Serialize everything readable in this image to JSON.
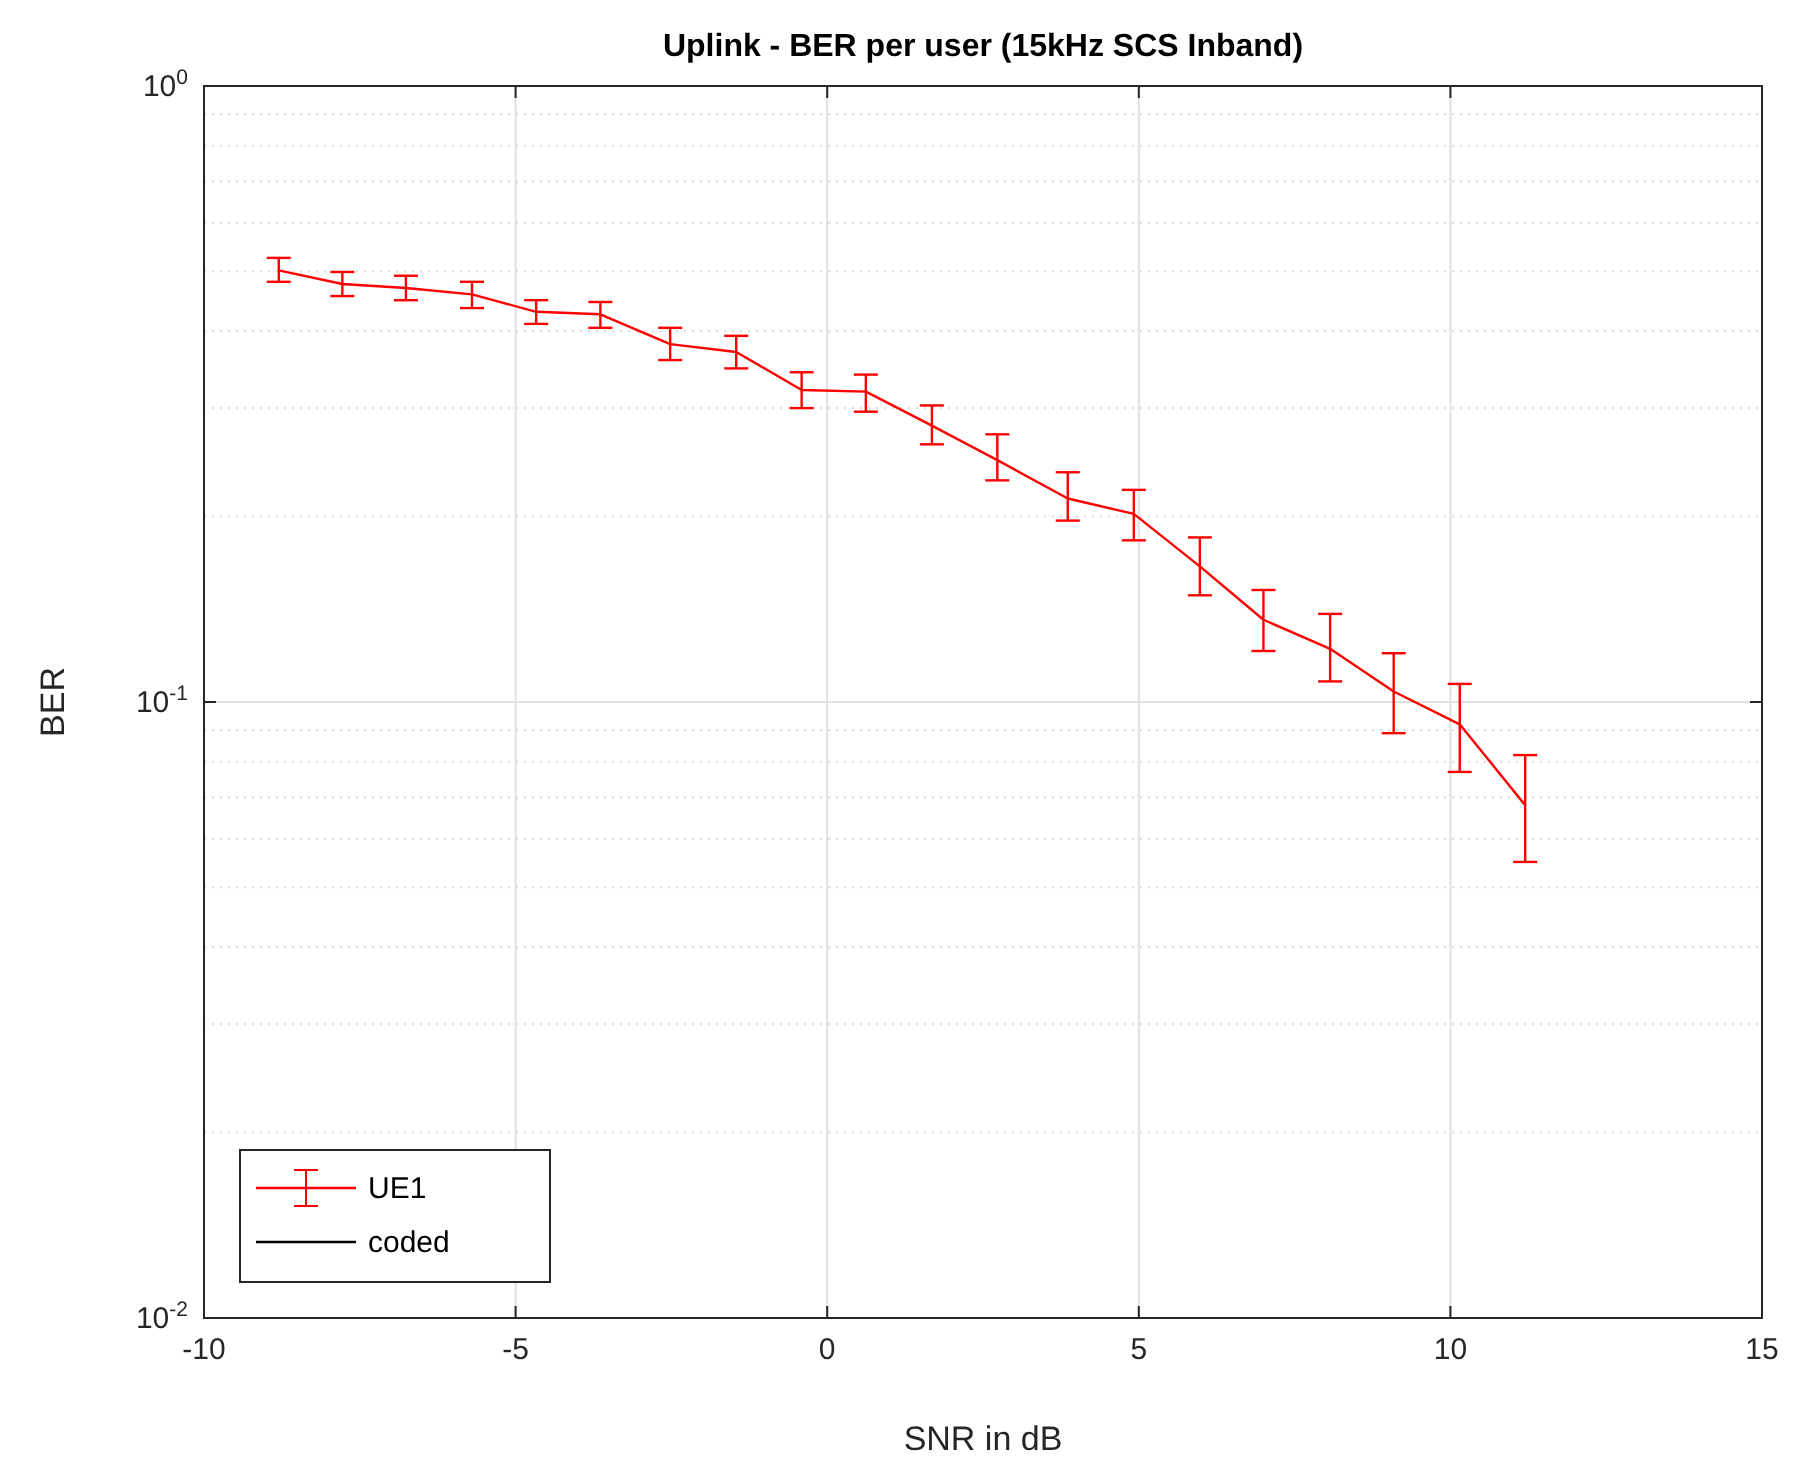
{
  "chart_data": {
    "type": "line",
    "title": "Uplink - BER per user (15kHz SCS Inband)",
    "xlabel": "SNR in dB",
    "ylabel": "BER",
    "log": "y",
    "grid": true,
    "legend": "bottom left",
    "line_style": "solid",
    "marker": "none",
    "xlim": [
      -10,
      15
    ],
    "xticks": [
      -10,
      -5,
      0,
      5,
      10,
      15
    ],
    "ylim": [
      0.01,
      1
    ],
    "yticks": [
      {
        "value": 0.01,
        "label": "10$^{-2}$"
      },
      {
        "value": 0.1,
        "label": "10$^{-1}$"
      },
      {
        "value": 1,
        "label": "10$^{0}$"
      }
    ],
    "x": [
      -8.8,
      -7.78,
      -6.76,
      -5.7,
      -4.67,
      -3.64,
      -2.52,
      -1.46,
      -0.41,
      0.62,
      1.68,
      2.73,
      3.86,
      4.92,
      5.98,
      7.0,
      8.07,
      9.09,
      10.15,
      11.2
    ],
    "series": [
      {
        "name": "UE1",
        "color": "#ff0000",
        "values": [
          0.502,
          0.477,
          0.47,
          0.459,
          0.43,
          0.426,
          0.381,
          0.37,
          0.321,
          0.319,
          0.281,
          0.247,
          0.214,
          0.202,
          0.166,
          0.136,
          0.122,
          0.104,
          0.092,
          0.068
        ],
        "errors": [
          [
            0.481,
            0.526
          ],
          [
            0.456,
            0.499
          ],
          [
            0.449,
            0.492
          ],
          [
            0.436,
            0.481
          ],
          [
            0.411,
            0.449
          ],
          [
            0.405,
            0.446
          ],
          [
            0.359,
            0.405
          ],
          [
            0.348,
            0.393
          ],
          [
            0.3,
            0.343
          ],
          [
            0.296,
            0.34
          ],
          [
            0.262,
            0.303
          ],
          [
            0.229,
            0.272
          ],
          [
            0.197,
            0.236
          ],
          [
            0.183,
            0.221
          ],
          [
            0.149,
            0.185
          ],
          [
            0.121,
            0.152
          ],
          [
            0.108,
            0.139
          ],
          [
            0.089,
            0.12
          ],
          [
            0.077,
            0.107
          ],
          [
            0.055,
            0.082
          ]
        ]
      },
      {
        "name": "coded",
        "color": "#000000",
        "values": [
          null,
          null,
          null,
          null,
          null,
          null,
          null,
          null,
          null,
          null,
          null,
          null,
          null,
          null,
          null,
          null,
          null,
          null,
          null,
          null
        ]
      }
    ]
  }
}
